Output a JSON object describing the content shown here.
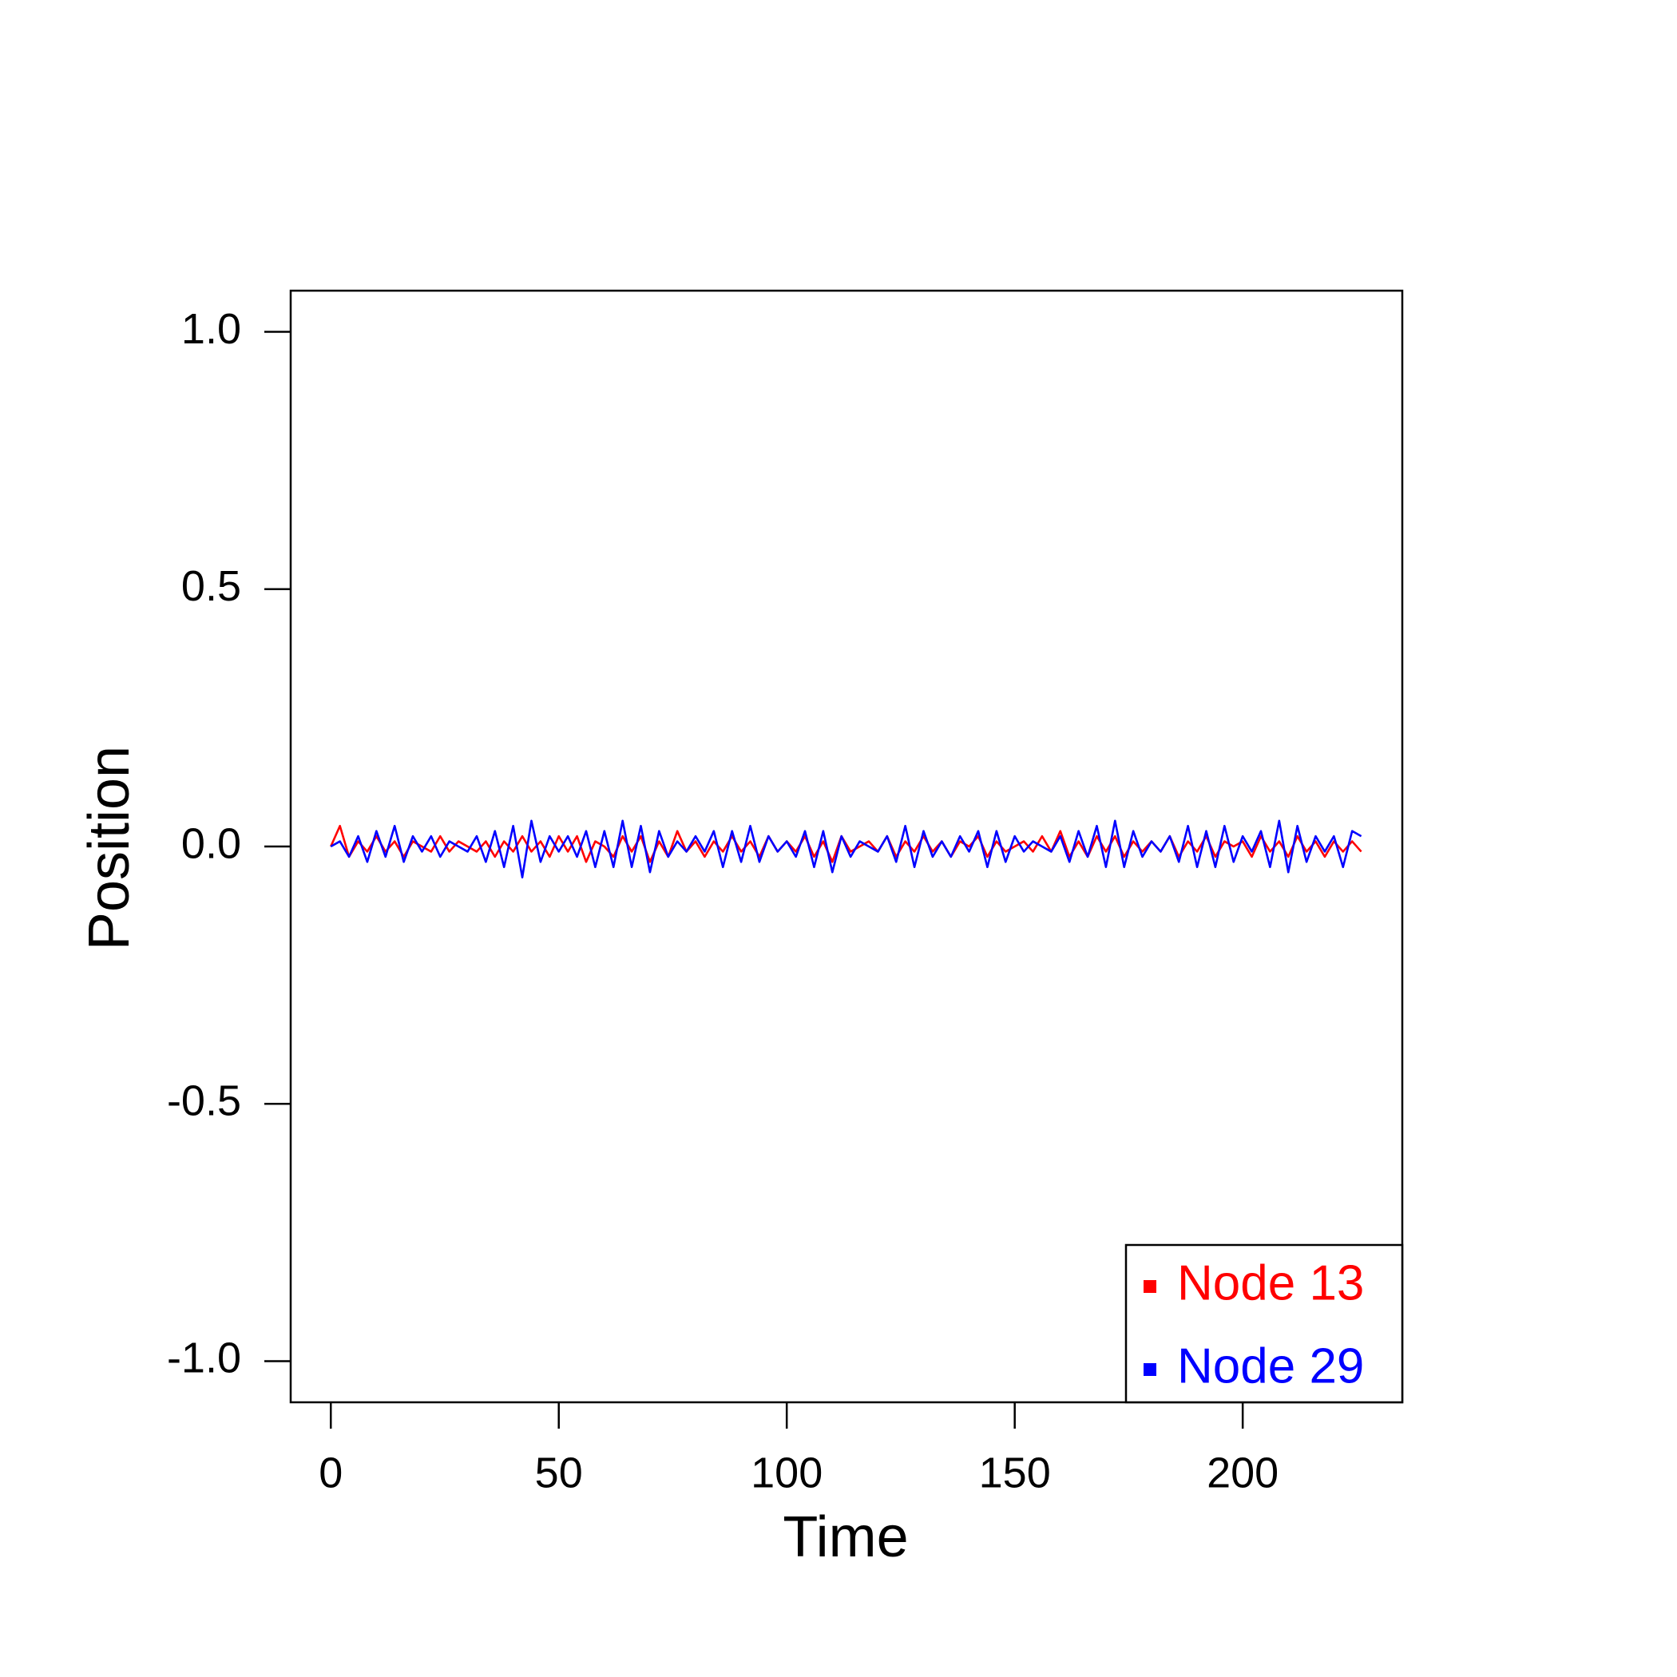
{
  "chart_data": {
    "type": "line",
    "xlabel": "Time",
    "ylabel": "Position",
    "x": [
      0,
      2,
      4,
      6,
      8,
      10,
      12,
      14,
      16,
      18,
      20,
      22,
      24,
      26,
      28,
      30,
      32,
      34,
      36,
      38,
      40,
      42,
      44,
      46,
      48,
      50,
      52,
      54,
      56,
      58,
      60,
      62,
      64,
      66,
      68,
      70,
      72,
      74,
      76,
      78,
      80,
      82,
      84,
      86,
      88,
      90,
      92,
      94,
      96,
      98,
      100,
      102,
      104,
      106,
      108,
      110,
      112,
      114,
      116,
      118,
      120,
      122,
      124,
      126,
      128,
      130,
      132,
      134,
      136,
      138,
      140,
      142,
      144,
      146,
      148,
      150,
      152,
      154,
      156,
      158,
      160,
      162,
      164,
      166,
      168,
      170,
      172,
      174,
      176,
      178,
      180,
      182,
      184,
      186,
      188,
      190,
      192,
      194,
      196,
      198,
      200,
      202,
      204,
      206,
      208,
      210,
      212,
      214,
      216,
      218,
      220,
      222,
      224,
      226
    ],
    "series": [
      {
        "name": "Node 13",
        "color": "#ff0000",
        "values": [
          0,
          0.04,
          -0.02,
          0.01,
          -0.01,
          0.02,
          -0.01,
          0.01,
          -0.02,
          0.01,
          0,
          -0.01,
          0.02,
          -0.01,
          0.01,
          0,
          -0.01,
          0.01,
          -0.02,
          0.01,
          -0.01,
          0.02,
          -0.01,
          0.01,
          -0.02,
          0.02,
          -0.01,
          0.02,
          -0.03,
          0.01,
          0,
          -0.02,
          0.02,
          -0.01,
          0.02,
          -0.03,
          0.01,
          -0.02,
          0.03,
          -0.01,
          0.01,
          -0.02,
          0.01,
          -0.01,
          0.02,
          -0.01,
          0.01,
          -0.02,
          0.02,
          -0.01,
          0.01,
          -0.01,
          0.02,
          -0.02,
          0.01,
          -0.03,
          0.02,
          -0.01,
          0,
          0.01,
          -0.01,
          0.02,
          -0.02,
          0.01,
          -0.01,
          0.02,
          -0.01,
          0.01,
          -0.02,
          0.01,
          0,
          0.02,
          -0.02,
          0.01,
          -0.01,
          0,
          0.01,
          -0.01,
          0.02,
          -0.01,
          0.03,
          -0.02,
          0.01,
          -0.02,
          0.02,
          -0.01,
          0.02,
          -0.02,
          0.01,
          -0.01,
          0.01,
          -0.01,
          0.02,
          -0.02,
          0.01,
          -0.01,
          0.02,
          -0.02,
          0.01,
          0,
          0.01,
          -0.02,
          0.02,
          -0.01,
          0.01,
          -0.02,
          0.02,
          -0.01,
          0.01,
          -0.02,
          0.01,
          -0.01,
          0.01,
          -0.01
        ]
      },
      {
        "name": "Node 29",
        "color": "#0000ff",
        "values": [
          0,
          0.01,
          -0.02,
          0.02,
          -0.03,
          0.03,
          -0.02,
          0.04,
          -0.03,
          0.02,
          -0.01,
          0.02,
          -0.02,
          0.01,
          0,
          -0.01,
          0.02,
          -0.03,
          0.03,
          -0.04,
          0.04,
          -0.06,
          0.05,
          -0.03,
          0.02,
          -0.01,
          0.02,
          -0.02,
          0.03,
          -0.04,
          0.03,
          -0.04,
          0.05,
          -0.04,
          0.04,
          -0.05,
          0.03,
          -0.02,
          0.01,
          -0.01,
          0.02,
          -0.01,
          0.03,
          -0.04,
          0.03,
          -0.03,
          0.04,
          -0.03,
          0.02,
          -0.01,
          0.01,
          -0.02,
          0.03,
          -0.04,
          0.03,
          -0.05,
          0.02,
          -0.02,
          0.01,
          0,
          -0.01,
          0.02,
          -0.03,
          0.04,
          -0.04,
          0.03,
          -0.02,
          0.01,
          -0.02,
          0.02,
          -0.01,
          0.03,
          -0.04,
          0.03,
          -0.03,
          0.02,
          -0.01,
          0.01,
          0,
          -0.01,
          0.02,
          -0.03,
          0.03,
          -0.02,
          0.04,
          -0.04,
          0.05,
          -0.04,
          0.03,
          -0.02,
          0.01,
          -0.01,
          0.02,
          -0.03,
          0.04,
          -0.04,
          0.03,
          -0.04,
          0.04,
          -0.03,
          0.02,
          -0.01,
          0.03,
          -0.04,
          0.05,
          -0.05,
          0.04,
          -0.03,
          0.02,
          -0.01,
          0.02,
          -0.04,
          0.03,
          0.02
        ]
      }
    ],
    "xlim": [
      -8.8,
      235
    ],
    "ylim": [
      -1.08,
      1.08
    ],
    "xticks": [
      0,
      50,
      100,
      150,
      200
    ],
    "yticks": [
      {
        "value": -1,
        "label": "-1.0"
      },
      -0.5,
      {
        "value": 0,
        "label": "0.0"
      },
      0.5,
      {
        "value": 1,
        "label": "1.0"
      }
    ],
    "grid": false,
    "legend": "bottomright"
  }
}
